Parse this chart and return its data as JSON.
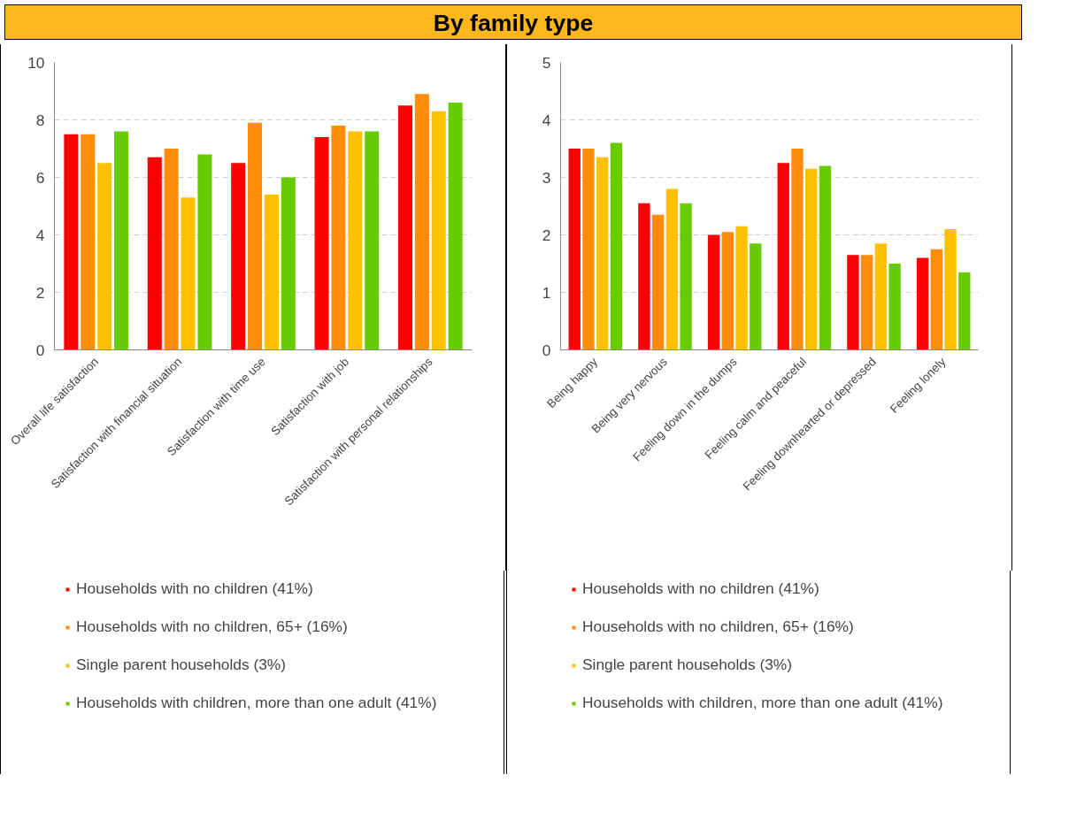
{
  "chart_data": [
    {
      "type": "bar",
      "title": "By family type",
      "categories": [
        "Overall life satisfaction",
        "Satisfaction with financial situation",
        "Satisfaction with time use",
        "Satisfaction with job",
        "Satisfaction with personal relationships"
      ],
      "series": [
        {
          "name": "Households with no children (41%)",
          "color": "#ff0000",
          "values": [
            7.5,
            6.7,
            6.5,
            7.4,
            8.5
          ]
        },
        {
          "name": "Households with no children, 65+ (16%)",
          "color": "#ff8c0a",
          "values": [
            7.5,
            7.0,
            7.9,
            7.8,
            8.9
          ]
        },
        {
          "name": "Single parent households (3%)",
          "color": "#ffc000",
          "values": [
            6.5,
            5.3,
            5.4,
            7.6,
            8.3
          ]
        },
        {
          "name": "Households with children, more than one adult (41%)",
          "color": "#66cc00",
          "values": [
            7.6,
            6.8,
            6.0,
            7.6,
            8.6
          ]
        }
      ],
      "ylim": [
        0,
        10
      ],
      "yticks": [
        0,
        2,
        4,
        6,
        8,
        10
      ],
      "grid": "y",
      "legend": "bottom"
    },
    {
      "type": "bar",
      "categories": [
        "Being happy",
        "Being very nervous",
        "Feeling down in the dumps",
        "Feeling calm and peaceful",
        "Feeling downhearted or depressed",
        "Feeling lonely"
      ],
      "series": [
        {
          "name": "Households with no children (41%)",
          "color": "#ff0000",
          "values": [
            3.5,
            2.55,
            2.0,
            3.25,
            1.65,
            1.6
          ]
        },
        {
          "name": "Households with no children, 65+ (16%)",
          "color": "#ff8c0a",
          "values": [
            3.5,
            2.35,
            2.05,
            3.5,
            1.65,
            1.75
          ]
        },
        {
          "name": "Single parent households (3%)",
          "color": "#ffc000",
          "values": [
            3.35,
            2.8,
            2.15,
            3.15,
            1.85,
            2.1
          ]
        },
        {
          "name": "Households with children, more than one adult (41%)",
          "color": "#66cc00",
          "values": [
            3.6,
            2.55,
            1.85,
            3.2,
            1.5,
            1.35
          ]
        }
      ],
      "ylim": [
        0,
        5
      ],
      "yticks": [
        0,
        1,
        2,
        3,
        4,
        5
      ],
      "grid": "y",
      "legend": "bottom"
    }
  ]
}
